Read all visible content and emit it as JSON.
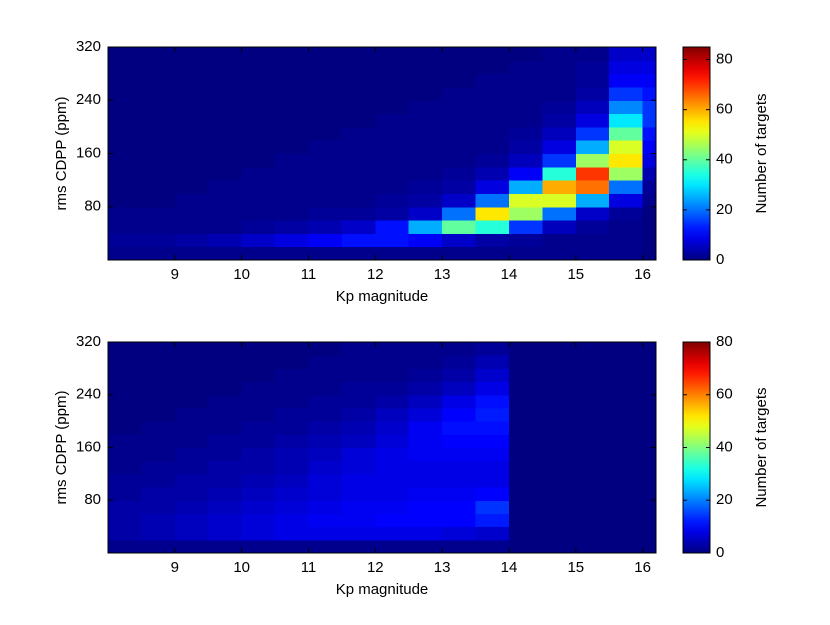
{
  "chart_data": [
    {
      "type": "heatmap",
      "xlabel": "Kp magnitude",
      "ylabel": "rms CDPP (ppm)",
      "colorbar_label": "Number of targets",
      "colormap": "jet",
      "xlim": [
        8,
        16.2
      ],
      "ylim": [
        0,
        320
      ],
      "xticks": [
        9,
        10,
        11,
        12,
        13,
        14,
        15,
        16
      ],
      "yticks": [
        80,
        160,
        240,
        320
      ],
      "clim": [
        0,
        85
      ],
      "cticks": [
        0,
        20,
        40,
        60,
        80
      ],
      "xbins": [
        8,
        8.5,
        9,
        9.5,
        10,
        10.5,
        11,
        11.5,
        12,
        12.5,
        13,
        13.5,
        14,
        14.5,
        15,
        15.5,
        16,
        16.2
      ],
      "ybins": [
        0,
        20,
        40,
        60,
        80,
        100,
        120,
        140,
        160,
        180,
        200,
        220,
        240,
        260,
        280,
        300,
        320
      ],
      "values": [
        [
          1,
          1,
          1,
          1,
          1,
          1,
          1,
          1,
          1,
          1,
          1,
          1,
          1,
          1,
          1,
          1,
          0
        ],
        [
          2,
          2,
          3,
          4,
          6,
          8,
          10,
          12,
          12,
          10,
          6,
          3,
          2,
          1,
          1,
          1,
          0
        ],
        [
          1,
          1,
          1,
          1,
          2,
          3,
          4,
          6,
          12,
          25,
          40,
          35,
          15,
          5,
          2,
          1,
          0
        ],
        [
          1,
          1,
          1,
          1,
          1,
          1,
          2,
          2,
          3,
          6,
          20,
          55,
          45,
          20,
          6,
          2,
          0
        ],
        [
          0,
          0,
          1,
          1,
          1,
          1,
          1,
          1,
          2,
          3,
          6,
          20,
          50,
          50,
          25,
          8,
          1
        ],
        [
          0,
          0,
          0,
          1,
          1,
          1,
          1,
          1,
          1,
          2,
          3,
          8,
          25,
          60,
          65,
          20,
          2
        ],
        [
          0,
          0,
          0,
          0,
          1,
          1,
          1,
          1,
          1,
          1,
          2,
          4,
          10,
          35,
          70,
          45,
          4
        ],
        [
          0,
          0,
          0,
          0,
          0,
          1,
          1,
          1,
          1,
          1,
          1,
          2,
          5,
          15,
          45,
          55,
          8
        ],
        [
          0,
          0,
          0,
          0,
          0,
          0,
          1,
          1,
          1,
          1,
          1,
          1,
          3,
          8,
          25,
          50,
          10
        ],
        [
          0,
          0,
          0,
          0,
          0,
          0,
          0,
          1,
          1,
          1,
          1,
          1,
          2,
          5,
          15,
          40,
          12
        ],
        [
          0,
          0,
          0,
          0,
          0,
          0,
          0,
          0,
          1,
          1,
          1,
          1,
          1,
          3,
          8,
          30,
          15
        ],
        [
          0,
          0,
          0,
          0,
          0,
          0,
          0,
          0,
          0,
          1,
          1,
          1,
          1,
          2,
          5,
          22,
          15
        ],
        [
          0,
          0,
          0,
          0,
          0,
          0,
          0,
          0,
          0,
          0,
          1,
          1,
          1,
          1,
          3,
          15,
          12
        ],
        [
          0,
          0,
          0,
          0,
          0,
          0,
          0,
          0,
          0,
          0,
          0,
          1,
          1,
          1,
          2,
          10,
          10
        ],
        [
          0,
          0,
          0,
          0,
          0,
          0,
          0,
          0,
          0,
          0,
          0,
          0,
          1,
          1,
          2,
          8,
          8
        ],
        [
          0,
          0,
          0,
          0,
          0,
          0,
          0,
          0,
          0,
          0,
          0,
          0,
          0,
          1,
          1,
          6,
          6
        ]
      ]
    },
    {
      "type": "heatmap",
      "xlabel": "Kp magnitude",
      "ylabel": "rms CDPP (ppm)",
      "colorbar_label": "Number of targets",
      "colormap": "jet",
      "xlim": [
        8,
        16.2
      ],
      "ylim": [
        0,
        320
      ],
      "xticks": [
        9,
        10,
        11,
        12,
        13,
        14,
        15,
        16
      ],
      "yticks": [
        80,
        160,
        240,
        320
      ],
      "clim": [
        0,
        80
      ],
      "cticks": [
        0,
        20,
        40,
        60,
        80
      ],
      "xbins": [
        8,
        8.5,
        9,
        9.5,
        10,
        10.5,
        11,
        11.5,
        12,
        12.5,
        13,
        13.5,
        14,
        14.5,
        15,
        15.5,
        16,
        16.2
      ],
      "ybins": [
        0,
        20,
        40,
        60,
        80,
        100,
        120,
        140,
        160,
        180,
        200,
        220,
        240,
        260,
        280,
        300,
        320
      ],
      "values": [
        [
          1,
          1,
          1,
          1,
          1,
          1,
          1,
          1,
          1,
          1,
          1,
          1,
          0,
          0,
          0,
          0,
          0
        ],
        [
          3,
          4,
          5,
          6,
          7,
          8,
          8,
          8,
          8,
          8,
          7,
          6,
          0,
          0,
          0,
          0,
          0
        ],
        [
          3,
          4,
          5,
          6,
          7,
          8,
          9,
          9,
          10,
          10,
          10,
          12,
          0,
          0,
          0,
          0,
          0
        ],
        [
          3,
          3,
          4,
          5,
          6,
          7,
          8,
          9,
          9,
          10,
          10,
          14,
          0,
          0,
          0,
          0,
          0
        ],
        [
          2,
          3,
          3,
          4,
          5,
          6,
          7,
          8,
          8,
          9,
          9,
          10,
          0,
          0,
          0,
          0,
          0
        ],
        [
          2,
          2,
          3,
          3,
          4,
          5,
          7,
          8,
          8,
          8,
          8,
          8,
          0,
          0,
          0,
          0,
          0
        ],
        [
          1,
          2,
          2,
          3,
          3,
          4,
          6,
          7,
          8,
          8,
          8,
          8,
          0,
          0,
          0,
          0,
          0
        ],
        [
          1,
          1,
          2,
          2,
          3,
          4,
          5,
          7,
          8,
          9,
          9,
          9,
          0,
          0,
          0,
          0,
          0
        ],
        [
          1,
          1,
          1,
          2,
          2,
          3,
          4,
          5,
          7,
          9,
          10,
          10,
          0,
          0,
          0,
          0,
          0
        ],
        [
          0,
          1,
          1,
          1,
          2,
          2,
          3,
          4,
          6,
          9,
          11,
          11,
          0,
          0,
          0,
          0,
          0
        ],
        [
          0,
          0,
          1,
          1,
          1,
          2,
          2,
          3,
          5,
          7,
          10,
          12,
          0,
          0,
          0,
          0,
          0
        ],
        [
          0,
          0,
          0,
          1,
          1,
          1,
          2,
          2,
          3,
          5,
          8,
          11,
          0,
          0,
          0,
          0,
          0
        ],
        [
          0,
          0,
          0,
          0,
          1,
          1,
          1,
          2,
          2,
          3,
          5,
          8,
          0,
          0,
          0,
          0,
          0
        ],
        [
          0,
          0,
          0,
          0,
          0,
          1,
          1,
          1,
          1,
          2,
          3,
          6,
          0,
          0,
          0,
          0,
          0
        ],
        [
          0,
          0,
          0,
          0,
          0,
          0,
          1,
          1,
          1,
          1,
          2,
          4,
          0,
          0,
          0,
          0,
          0
        ],
        [
          0,
          0,
          0,
          0,
          0,
          0,
          0,
          1,
          1,
          1,
          1,
          2,
          0,
          0,
          0,
          0,
          0
        ]
      ]
    }
  ]
}
